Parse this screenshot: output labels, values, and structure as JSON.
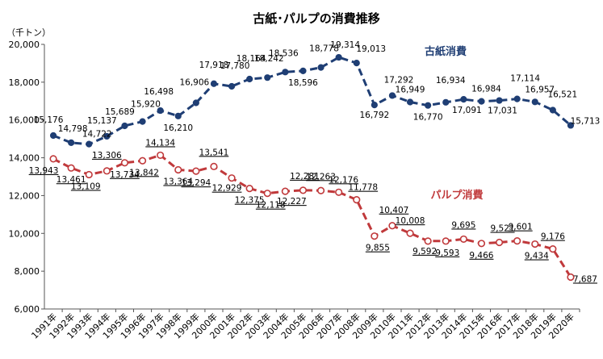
{
  "chart_data": {
    "type": "line",
    "title": "古紙･パルプの消費推移",
    "unit_label": "（千トン）",
    "x": [
      "1991年",
      "1992年",
      "1993年",
      "1994年",
      "1995年",
      "1996年",
      "1997年",
      "1998年",
      "1999年",
      "2000年",
      "2001年",
      "2002年",
      "2003年",
      "2004年",
      "2005年",
      "2006年",
      "2007年",
      "2008年",
      "2009年",
      "2010年",
      "2011年",
      "2012年",
      "2013年",
      "2014年",
      "2015年",
      "2016年",
      "2017年",
      "2018年",
      "2019年",
      "2020年"
    ],
    "ylim": [
      6000,
      20000
    ],
    "yticks": [
      "6,000",
      "8,000",
      "10,000",
      "12,000",
      "14,000",
      "16,000",
      "18,000",
      "20,000"
    ],
    "ytick_values": [
      6000,
      8000,
      10000,
      12000,
      14000,
      16000,
      18000,
      20000
    ],
    "grid": false,
    "series": [
      {
        "name": "古紙消費",
        "color": "#1f3e74",
        "marker": "filled-circle",
        "values": [
          15176,
          14798,
          14722,
          15137,
          15689,
          15920,
          16498,
          16210,
          16906,
          17918,
          17780,
          18164,
          18242,
          18536,
          18596,
          18778,
          19314,
          19013,
          16792,
          17292,
          16949,
          16770,
          16934,
          17091,
          16984,
          17031,
          17114,
          16957,
          16521,
          15713
        ],
        "labels": [
          "15,176",
          "14,798",
          "14,722",
          "15,137",
          "15,689",
          "15,920",
          "16,498",
          "16,210",
          "16,906",
          "17,918",
          "17,780",
          "18,164",
          "18,242",
          "18,536",
          "18,596",
          "18,778",
          "19,314",
          "19,013",
          "16,792",
          "17,292",
          "16,949",
          "16,770",
          "16,934",
          "17,091",
          "16,984",
          "17,031",
          "17,114",
          "16,957",
          "16,521",
          "15,713"
        ]
      },
      {
        "name": "パルプ消費",
        "color": "#c0393b",
        "marker": "open-circle",
        "values": [
          13943,
          13461,
          13109,
          13306,
          13734,
          13842,
          14134,
          13364,
          13294,
          13541,
          12929,
          12375,
          12118,
          12227,
          12281,
          12263,
          12176,
          11778,
          9855,
          10407,
          10008,
          9592,
          9593,
          9695,
          9466,
          9521,
          9601,
          9434,
          9176,
          7687
        ],
        "labels": [
          "13,943",
          "13,461",
          "13,109",
          "13,306",
          "13,734",
          "13,842",
          "14,134",
          "13,364",
          "13,294",
          "13,541",
          "12,929",
          "12,375",
          "12,118",
          "12,227",
          "12,281",
          "12,263",
          "12,176",
          "11,778",
          "9,855",
          "10,407",
          "10,008",
          "9,592",
          "9,593",
          "9,695",
          "9,466",
          "9,521",
          "9,601",
          "9,434",
          "9,176",
          "7,687"
        ]
      }
    ]
  }
}
